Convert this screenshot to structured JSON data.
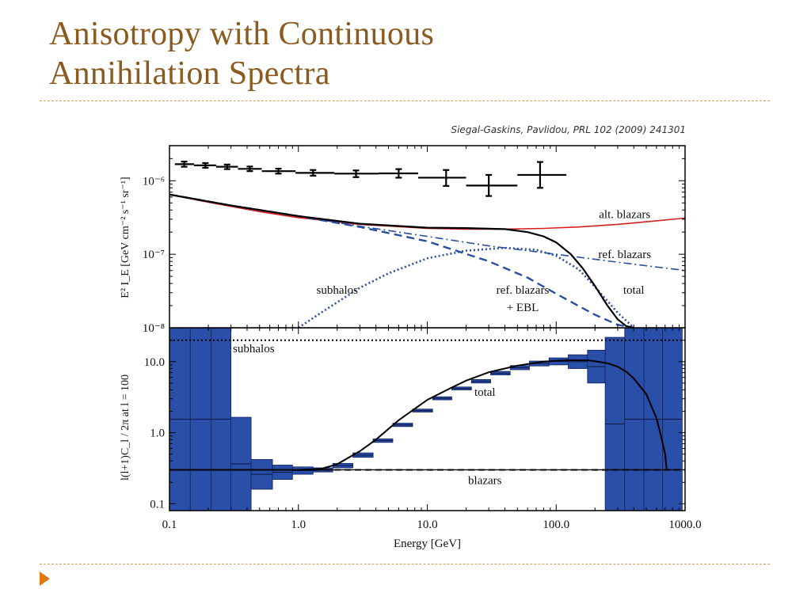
{
  "slide": {
    "title_line1": "Anisotropy with Continuous",
    "title_line2": "Annihilation Spectra",
    "citation": "Siegal-Gaskins, Pavlidou, PRL 102 (2009) 241301",
    "accent_color": "#8a5a1e",
    "bullet_color": "#e07a10",
    "bullet_icon": "triangle-right-icon"
  },
  "chart_data": [
    {
      "type": "line",
      "panel": "top",
      "xlabel": "",
      "ylabel": "E² I_E [GeV cm⁻² s⁻¹ sr⁻¹]",
      "xlim": [
        0.1,
        1000
      ],
      "ylim": [
        1e-08,
        3e-06
      ],
      "xscale": "log",
      "yscale": "log",
      "yticks": [
        {
          "value": 1e-06,
          "label": "10⁻⁶"
        },
        {
          "value": 1e-07,
          "label": "10⁻⁷"
        },
        {
          "value": 1e-08,
          "label": "10⁻⁸"
        }
      ],
      "colors": {
        "data": "#000000",
        "alt": "#d42020",
        "blue": "#2a4fa0",
        "total": "#000000"
      },
      "series": [
        {
          "name": "alt. blazars",
          "style": "solid-red",
          "x": [
            0.1,
            0.2,
            0.5,
            1,
            3,
            10,
            20,
            40,
            80,
            150,
            300,
            600,
            1000
          ],
          "y": [
            6.5e-07,
            5.1e-07,
            3.8e-07,
            3.15e-07,
            2.55e-07,
            2.25e-07,
            2.2e-07,
            2.2e-07,
            2.25e-07,
            2.35e-07,
            2.55e-07,
            2.85e-07,
            3.1e-07
          ]
        },
        {
          "name": "ref. blazars",
          "style": "dashdot-blue",
          "x": [
            0.1,
            0.3,
            1,
            3,
            10,
            30,
            100,
            300,
            1000
          ],
          "y": [
            6.5e-07,
            4.6e-07,
            3.3e-07,
            2.4e-07,
            1.75e-07,
            1.3e-07,
            1e-07,
            7.8e-08,
            6e-08
          ]
        },
        {
          "name": "ref. blazars + EBL",
          "style": "dashed-blue",
          "x": [
            0.1,
            0.3,
            1,
            3,
            10,
            30,
            60,
            100,
            200,
            300,
            400
          ],
          "y": [
            6.5e-07,
            4.6e-07,
            3.3e-07,
            2.35e-07,
            1.5e-07,
            8e-08,
            4.8e-08,
            2.9e-08,
            1.5e-08,
            1.1e-08,
            1e-08
          ]
        },
        {
          "name": "subhalos",
          "style": "dotted-blue",
          "x": [
            1.0,
            1.5,
            3,
            5,
            10,
            20,
            40,
            70,
            100,
            150,
            200,
            300,
            400
          ],
          "y": [
            1e-08,
            1.6e-08,
            3.5e-08,
            5.5e-08,
            8.8e-08,
            1.12e-07,
            1.22e-07,
            1.15e-07,
            9.5e-08,
            6.2e-08,
            3.6e-08,
            1.6e-08,
            1e-08
          ]
        },
        {
          "name": "total",
          "style": "solid-black",
          "x": [
            0.1,
            0.3,
            1,
            3,
            10,
            20,
            40,
            60,
            80,
            100,
            130,
            160,
            200,
            250,
            300,
            350,
            400
          ],
          "y": [
            6.5e-07,
            4.6e-07,
            3.3e-07,
            2.6e-07,
            2.3e-07,
            2.27e-07,
            2.2e-07,
            2e-07,
            1.75e-07,
            1.45e-07,
            1e-07,
            6.5e-08,
            3.7e-08,
            2e-08,
            1.3e-08,
            1.05e-08,
            1e-08
          ]
        }
      ],
      "points": [
        {
          "x": 0.13,
          "y": 1.68e-06,
          "xerr": [
            0.11,
            0.155
          ],
          "yerr": [
            1.55e-06,
            1.82e-06
          ]
        },
        {
          "x": 0.19,
          "y": 1.62e-06,
          "xerr": [
            0.155,
            0.23
          ],
          "yerr": [
            1.5e-06,
            1.74e-06
          ]
        },
        {
          "x": 0.28,
          "y": 1.55e-06,
          "xerr": [
            0.23,
            0.34
          ],
          "yerr": [
            1.44e-06,
            1.66e-06
          ]
        },
        {
          "x": 0.42,
          "y": 1.45e-06,
          "xerr": [
            0.34,
            0.52
          ],
          "yerr": [
            1.35e-06,
            1.56e-06
          ]
        },
        {
          "x": 0.7,
          "y": 1.35e-06,
          "xerr": [
            0.52,
            0.95
          ],
          "yerr": [
            1.25e-06,
            1.46e-06
          ]
        },
        {
          "x": 1.3,
          "y": 1.28e-06,
          "xerr": [
            0.95,
            1.9
          ],
          "yerr": [
            1.17e-06,
            1.4e-06
          ]
        },
        {
          "x": 2.8,
          "y": 1.25e-06,
          "xerr": [
            1.9,
            4.2
          ],
          "yerr": [
            1.12e-06,
            1.38e-06
          ]
        },
        {
          "x": 6.0,
          "y": 1.26e-06,
          "xerr": [
            4.2,
            8.5
          ],
          "yerr": [
            1.1e-06,
            1.44e-06
          ]
        },
        {
          "x": 14,
          "y": 1.1e-06,
          "xerr": [
            8.5,
            20
          ],
          "yerr": [
            8.5e-07,
            1.4e-06
          ]
        },
        {
          "x": 30,
          "y": 8.6e-07,
          "xerr": [
            20,
            50
          ],
          "yerr": [
            6.2e-07,
            1.2e-06
          ]
        },
        {
          "x": 75,
          "y": 1.2e-06,
          "xerr": [
            50,
            120
          ],
          "yerr": [
            8e-07,
            1.8e-06
          ]
        }
      ],
      "annotations": [
        {
          "text": "alt. blazars",
          "x": 340,
          "y": 3.5e-07
        },
        {
          "text": "ref. blazars",
          "x": 340,
          "y": 1e-07
        },
        {
          "text": "total",
          "x": 400,
          "y": 3.3e-08
        },
        {
          "text": "subhalos",
          "x": 2.0,
          "y": 3.3e-08
        },
        {
          "text": "ref. blazars",
          "x": 55,
          "y": 3.3e-08
        },
        {
          "text": "+ EBL",
          "x": 55,
          "y": 1.9e-08
        }
      ]
    },
    {
      "type": "line",
      "panel": "bottom",
      "xlabel": "Energy [GeV]",
      "ylabel": "l(l+1)C_l / 2π  at l = 100",
      "xlim": [
        0.1,
        1000
      ],
      "ylim": [
        0.08,
        30
      ],
      "xscale": "log",
      "yscale": "log",
      "xticks": [
        {
          "value": 0.1,
          "label": "0.1"
        },
        {
          "value": 1,
          "label": "1.0"
        },
        {
          "value": 10,
          "label": "10.0"
        },
        {
          "value": 100,
          "label": "100.0"
        },
        {
          "value": 1000,
          "label": "1000.0"
        }
      ],
      "yticks": [
        {
          "value": 0.1,
          "label": "0.1"
        },
        {
          "value": 1,
          "label": "1.0"
        },
        {
          "value": 10,
          "label": "10.0"
        }
      ],
      "colors": {
        "box": "#2a4fa8",
        "boxEdge": "#15225e"
      },
      "lines": [
        {
          "name": "subhalos",
          "style": "dotted",
          "y": 20
        },
        {
          "name": "blazars",
          "style": "dashed",
          "y": 0.3
        }
      ],
      "total_curve": {
        "name": "total",
        "x": [
          0.1,
          0.5,
          1.0,
          1.5,
          2,
          3,
          4,
          6,
          10,
          15,
          20,
          30,
          50,
          80,
          120,
          180,
          250,
          300,
          350,
          400,
          500,
          600,
          650,
          700,
          720
        ],
        "y": [
          0.3,
          0.3,
          0.3,
          0.31,
          0.36,
          0.55,
          0.8,
          1.5,
          2.9,
          4.2,
          5.4,
          7.1,
          8.8,
          10.0,
          10.5,
          10.4,
          9.5,
          8.5,
          7.2,
          5.8,
          3.5,
          1.6,
          0.9,
          0.5,
          0.3
        ]
      },
      "boxes": [
        {
          "x0": 0.1,
          "x1": 0.145,
          "y0": 0.08,
          "y1": 30
        },
        {
          "x0": 0.145,
          "x1": 0.21,
          "y0": 0.08,
          "y1": 30
        },
        {
          "x0": 0.21,
          "x1": 0.3,
          "y0": 0.08,
          "y1": 30
        },
        {
          "x0": 0.3,
          "x1": 0.43,
          "y0": 0.08,
          "y1": 1.65
        },
        {
          "x0": 0.43,
          "x1": 0.63,
          "y0": 0.16,
          "y1": 0.42
        },
        {
          "x0": 0.63,
          "x1": 0.9,
          "y0": 0.22,
          "y1": 0.35
        },
        {
          "x0": 0.9,
          "x1": 1.3,
          "y0": 0.26,
          "y1": 0.33
        },
        {
          "x0": 1.3,
          "x1": 1.85,
          "y0": 0.28,
          "y1": 0.32
        },
        {
          "x0": 1.85,
          "x1": 2.65,
          "y0": 0.32,
          "y1": 0.37
        },
        {
          "x0": 2.65,
          "x1": 3.8,
          "y0": 0.45,
          "y1": 0.52
        },
        {
          "x0": 3.8,
          "x1": 5.4,
          "y0": 0.73,
          "y1": 0.82
        },
        {
          "x0": 5.4,
          "x1": 7.7,
          "y0": 1.22,
          "y1": 1.36
        },
        {
          "x0": 7.7,
          "x1": 11,
          "y0": 1.95,
          "y1": 2.15
        },
        {
          "x0": 11,
          "x1": 15.5,
          "y0": 2.9,
          "y1": 3.2
        },
        {
          "x0": 15.5,
          "x1": 22,
          "y0": 4.0,
          "y1": 4.4
        },
        {
          "x0": 22,
          "x1": 31,
          "y0": 5.0,
          "y1": 5.6
        },
        {
          "x0": 31,
          "x1": 44,
          "y0": 6.5,
          "y1": 7.3
        },
        {
          "x0": 44,
          "x1": 62,
          "y0": 7.7,
          "y1": 8.8
        },
        {
          "x0": 62,
          "x1": 88,
          "y0": 8.7,
          "y1": 10.2
        },
        {
          "x0": 88,
          "x1": 124,
          "y0": 9.0,
          "y1": 11.3
        },
        {
          "x0": 124,
          "x1": 175,
          "y0": 8.0,
          "y1": 12.5
        },
        {
          "x0": 175,
          "x1": 240,
          "y0": 5.0,
          "y1": 14.5
        },
        {
          "x0": 240,
          "x1": 340,
          "y0": 0.08,
          "y1": 22
        },
        {
          "x0": 340,
          "x1": 480,
          "y0": 0.08,
          "y1": 30
        },
        {
          "x0": 480,
          "x1": 670,
          "y0": 0.08,
          "y1": 30
        },
        {
          "x0": 670,
          "x1": 950,
          "y0": 0.08,
          "y1": 30
        }
      ],
      "annotations": [
        {
          "text": "subhalos",
          "x": 0.45,
          "y": 13.5
        },
        {
          "text": "total",
          "x": 28,
          "y": 3.3
        },
        {
          "text": "blazars",
          "x": 28,
          "y": 0.19
        }
      ]
    }
  ]
}
